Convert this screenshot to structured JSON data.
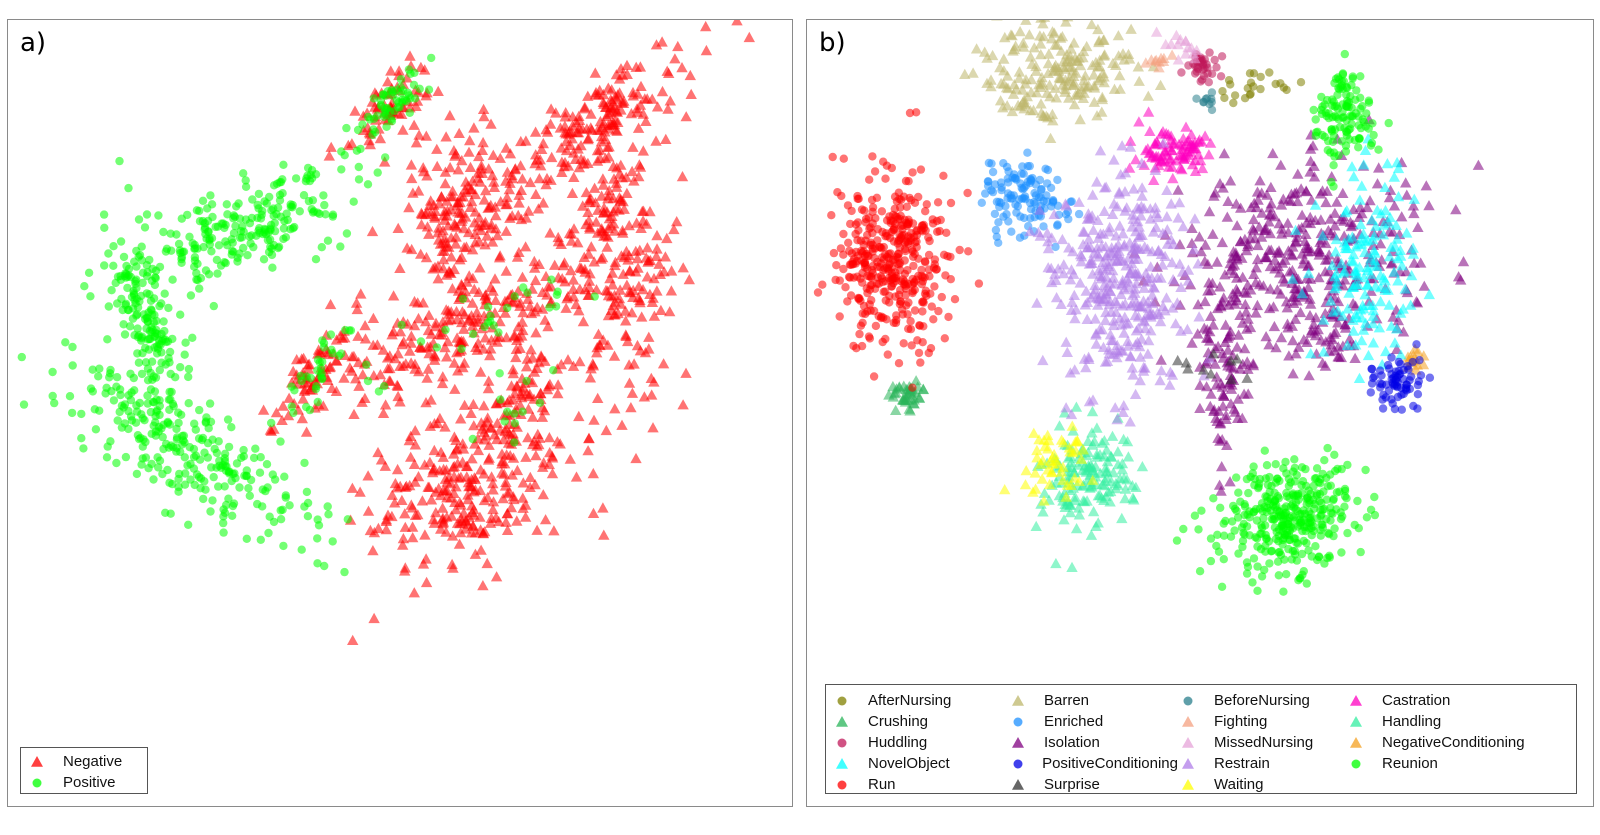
{
  "chart_data": [
    {
      "panel_label": "a)",
      "type": "scatter",
      "title": "",
      "xlabel": "",
      "ylabel": "",
      "axes_visible": false,
      "legend_position": "bottom-left",
      "series": [
        {
          "name": "Negative",
          "marker": "triangle",
          "color": "#ff0000",
          "clusters": [
            {
              "center": [
                -3,
                78
              ],
              "spread": [
                3,
                7
              ],
              "angle": -45,
              "count": 70
            },
            {
              "center": [
                49,
                72
              ],
              "spread": [
                15,
                5
              ],
              "angle": 35,
              "count": 160
            },
            {
              "center": [
                17,
                52
              ],
              "spread": [
                8,
                10
              ],
              "angle": 0,
              "count": 190
            },
            {
              "center": [
                56,
                40
              ],
              "spread": [
                7,
                20
              ],
              "angle": 5,
              "count": 230
            },
            {
              "center": [
                18,
                22
              ],
              "spread": [
                20,
                6
              ],
              "angle": 25,
              "count": 240
            },
            {
              "center": [
                32,
                4
              ],
              "spread": [
                9,
                6
              ],
              "angle": 40,
              "count": 90
            },
            {
              "center": [
                -21,
                11
              ],
              "spread": [
                3,
                9
              ],
              "angle": -35,
              "count": 70
            },
            {
              "center": [
                17,
                -20
              ],
              "spread": [
                15,
                9
              ],
              "angle": 25,
              "count": 260
            }
          ]
        },
        {
          "name": "Positive",
          "marker": "circle",
          "color": "#00ff00",
          "clusters": [
            {
              "center": [
                -3,
                78
              ],
              "spread": [
                2,
                6
              ],
              "angle": -45,
              "count": 60
            },
            {
              "center": [
                -42,
                46
              ],
              "spread": [
                17,
                5
              ],
              "angle": 28,
              "count": 230
            },
            {
              "center": [
                -65,
                25
              ],
              "spread": [
                4,
                13
              ],
              "angle": 15,
              "count": 160
            },
            {
              "center": [
                -53,
                -10
              ],
              "spread": [
                18,
                6
              ],
              "angle": -35,
              "count": 260
            },
            {
              "center": [
                -21,
                11
              ],
              "spread": [
                2,
                8
              ],
              "angle": -35,
              "count": 35
            },
            {
              "center": [
                20,
                22
              ],
              "spread": [
                18,
                4
              ],
              "angle": 25,
              "count": 28
            },
            {
              "center": [
                32,
                4
              ],
              "spread": [
                8,
                4
              ],
              "angle": 40,
              "count": 12
            }
          ]
        }
      ]
    },
    {
      "panel_label": "b)",
      "type": "scatter",
      "title": "",
      "xlabel": "",
      "ylabel": "",
      "axes_visible": false,
      "legend_position": "bottom",
      "series": [
        {
          "name": "AfterNursing",
          "marker": "circle",
          "color": "#808000",
          "clusters": [
            {
              "center": [
                12,
                84
              ],
              "spread": [
                5,
                2
              ],
              "angle": 5,
              "count": 22
            }
          ]
        },
        {
          "name": "Barren",
          "marker": "triangle",
          "color": "#bdb76b",
          "clusters": [
            {
              "center": [
                -35,
                86
              ],
              "spread": [
                10,
                7
              ],
              "angle": 0,
              "count": 200
            }
          ]
        },
        {
          "name": "BeforeNursing",
          "marker": "circle",
          "color": "#2a7f8c",
          "clusters": [
            {
              "center": [
                2,
                80
              ],
              "spread": [
                1.5,
                1.5
              ],
              "angle": 0,
              "count": 10
            }
          ]
        },
        {
          "name": "Castration",
          "marker": "triangle",
          "color": "#ff00c0",
          "clusters": [
            {
              "center": [
                -7,
                67
              ],
              "spread": [
                5,
                3
              ],
              "angle": 0,
              "count": 90
            }
          ]
        },
        {
          "name": "Crushing",
          "marker": "triangle",
          "color": "#2ab45a",
          "clusters": [
            {
              "center": [
                -75,
                5
              ],
              "spread": [
                3,
                2
              ],
              "angle": 0,
              "count": 40
            }
          ]
        },
        {
          "name": "Enriched",
          "marker": "circle",
          "color": "#1e90ff",
          "clusters": [
            {
              "center": [
                -45,
                55
              ],
              "spread": [
                5,
                5
              ],
              "angle": 0,
              "count": 120
            }
          ]
        },
        {
          "name": "Fighting",
          "marker": "triangle",
          "color": "#f4a080",
          "clusters": [
            {
              "center": [
                -10,
                90
              ],
              "spread": [
                2,
                1.5
              ],
              "angle": 0,
              "count": 10
            }
          ]
        },
        {
          "name": "Handling",
          "marker": "triangle",
          "color": "#33eea0",
          "clusters": [
            {
              "center": [
                -29,
                -16
              ],
              "spread": [
                6,
                7
              ],
              "angle": -30,
              "count": 150
            }
          ]
        },
        {
          "name": "Huddling",
          "marker": "circle",
          "color": "#c0185a",
          "clusters": [
            {
              "center": [
                1,
                88
              ],
              "spread": [
                2,
                2
              ],
              "angle": 0,
              "count": 35
            }
          ]
        },
        {
          "name": "Isolation",
          "marker": "triangle",
          "color": "#800080",
          "clusters": [
            {
              "center": [
                27,
                40
              ],
              "spread": [
                15,
                11
              ],
              "angle": 10,
              "count": 380
            },
            {
              "center": [
                6,
                9
              ],
              "spread": [
                3,
                10
              ],
              "angle": 0,
              "count": 90
            },
            {
              "center": [
                31,
                20
              ],
              "spread": [
                5,
                4
              ],
              "angle": 0,
              "count": 40
            }
          ]
        },
        {
          "name": "MissedNursing",
          "marker": "triangle",
          "color": "#e6a3d8",
          "clusters": [
            {
              "center": [
                -5,
                93
              ],
              "spread": [
                2,
                2
              ],
              "angle": 0,
              "count": 15
            }
          ]
        },
        {
          "name": "NegativeConditioning",
          "marker": "triangle",
          "color": "#f4a020",
          "clusters": [
            {
              "center": [
                55,
                14
              ],
              "spread": [
                2,
                2
              ],
              "angle": 0,
              "count": 14
            }
          ]
        },
        {
          "name": "NovelObject",
          "marker": "triangle",
          "color": "#00ffff",
          "clusters": [
            {
              "center": [
                42,
                38
              ],
              "spread": [
                6,
                12
              ],
              "angle": 0,
              "count": 150
            }
          ]
        },
        {
          "name": "PositiveConditioning",
          "marker": "circle",
          "color": "#0000e6",
          "clusters": [
            {
              "center": [
                50,
                8
              ],
              "spread": [
                3.5,
                3
              ],
              "angle": 0,
              "count": 70
            }
          ]
        },
        {
          "name": "Restrain",
          "marker": "triangle",
          "color": "#b07de8",
          "clusters": [
            {
              "center": [
                -20,
                35
              ],
              "spread": [
                8,
                14
              ],
              "angle": 0,
              "count": 360
            }
          ]
        },
        {
          "name": "Reunion",
          "marker": "circle",
          "color": "#00ff00",
          "clusters": [
            {
              "center": [
                37,
                75
              ],
              "spread": [
                3.5,
                6
              ],
              "angle": 0,
              "count": 120
            },
            {
              "center": [
                23,
                -26
              ],
              "spread": [
                9,
                7
              ],
              "angle": 15,
              "count": 350
            }
          ]
        },
        {
          "name": "Run",
          "marker": "circle",
          "color": "#ff0000",
          "clusters": [
            {
              "center": [
                -78,
                39
              ],
              "spread": [
                7,
                11
              ],
              "angle": 0,
              "count": 400
            }
          ]
        },
        {
          "name": "Surprise",
          "marker": "triangle",
          "color": "#333333",
          "clusters": [
            {
              "center": [
                5,
                12
              ],
              "spread": [
                6,
                3
              ],
              "angle": 0,
              "count": 10
            }
          ]
        },
        {
          "name": "Waiting",
          "marker": "triangle",
          "color": "#ffff00",
          "clusters": [
            {
              "center": [
                -37,
                -12
              ],
              "spread": [
                4,
                5
              ],
              "angle": 0,
              "count": 50
            }
          ]
        }
      ]
    }
  ],
  "legend_b_order": [
    "AfterNursing",
    "Barren",
    "BeforeNursing",
    "Castration",
    "Crushing",
    "Enriched",
    "Fighting",
    "Handling",
    "Huddling",
    "Isolation",
    "MissedNursing",
    "NegativeConditioning",
    "NovelObject",
    "PositiveConditioning",
    "Restrain",
    "Reunion",
    "Run",
    "Surprise",
    "Waiting"
  ]
}
